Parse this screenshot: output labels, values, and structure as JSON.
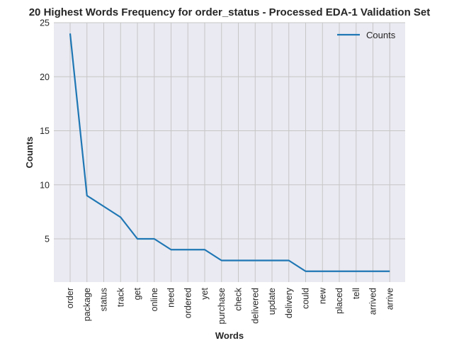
{
  "chart_data": {
    "type": "line",
    "title": "20 Highest Words Frequency for order_status - Processed EDA-1 Validation Set",
    "xlabel": "Words",
    "ylabel": "Counts",
    "categories": [
      "order",
      "package",
      "status",
      "track",
      "get",
      "online",
      "need",
      "ordered",
      "yet",
      "purchase",
      "check",
      "delivered",
      "update",
      "delivery",
      "could",
      "new",
      "placed",
      "tell",
      "arrived",
      "arrive"
    ],
    "series": [
      {
        "name": "Counts",
        "values": [
          24,
          9,
          8,
          7,
          5,
          5,
          4,
          4,
          4,
          3,
          3,
          3,
          3,
          3,
          2,
          2,
          2,
          2,
          2,
          2
        ]
      }
    ],
    "ylim": [
      1,
      25
    ],
    "yticks": [
      5,
      10,
      15,
      20,
      25
    ],
    "grid": true,
    "legend_position": "top-right",
    "colors": {
      "line": "#1f77b4",
      "background": "#eaeaf2",
      "grid": "#c6c6c6"
    }
  }
}
